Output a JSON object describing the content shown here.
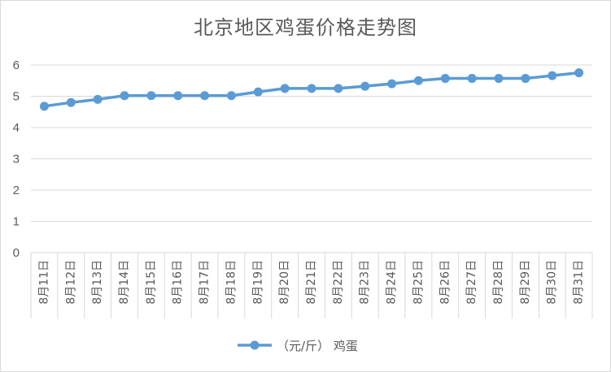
{
  "chart_data": {
    "type": "line",
    "title": "北京地区鸡蛋价格走势图",
    "categories": [
      "8月11日",
      "8月12日",
      "8月13日",
      "8月14日",
      "8月15日",
      "8月16日",
      "8月17日",
      "8月18日",
      "8月19日",
      "8月20日",
      "8月21日",
      "8月22日",
      "8月23日",
      "8月24日",
      "8月25日",
      "8月26日",
      "8月27日",
      "8月28日",
      "8月29日",
      "8月30日",
      "8月31日"
    ],
    "series": [
      {
        "name": "（元/斤） 鸡蛋",
        "values": [
          4.68,
          4.8,
          4.9,
          5.02,
          5.02,
          5.02,
          5.02,
          5.02,
          5.14,
          5.25,
          5.25,
          5.25,
          5.32,
          5.4,
          5.5,
          5.57,
          5.57,
          5.57,
          5.57,
          5.66,
          5.75
        ]
      }
    ],
    "ylim": [
      0,
      6
    ],
    "yticks": [
      0,
      1,
      2,
      3,
      4,
      5,
      6
    ],
    "grid": true,
    "legend": "bottom",
    "colors": {
      "series": "#5b9bd5",
      "grid": "#d9d9d9",
      "text": "#595959"
    }
  }
}
